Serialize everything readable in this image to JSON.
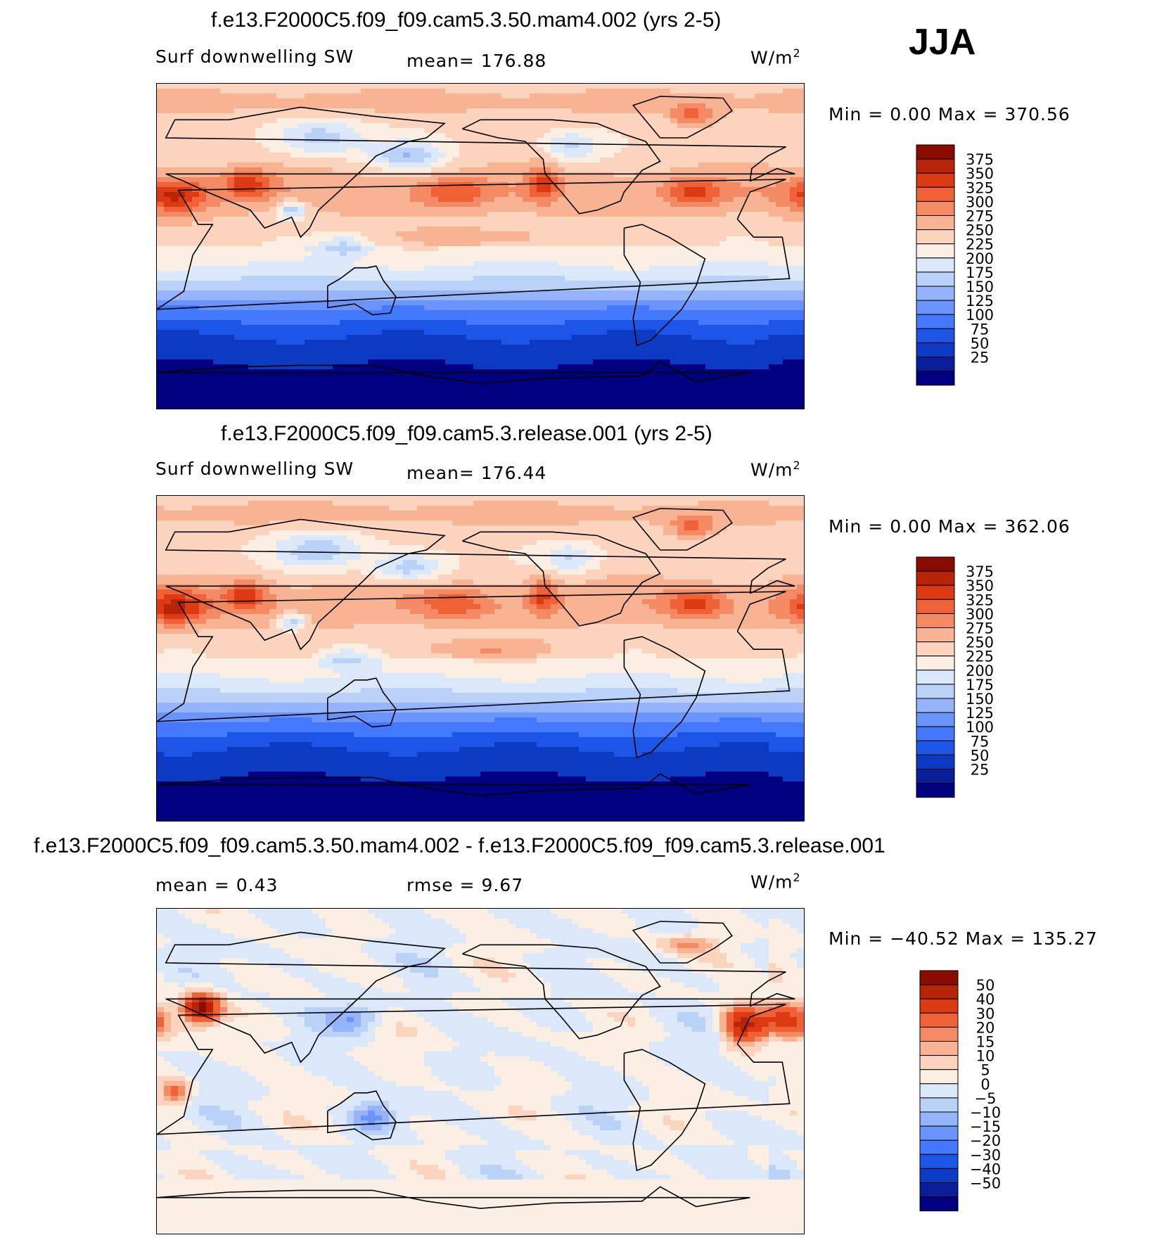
{
  "season": "JJA",
  "colors": {
    "abs_scale": [
      "#000080",
      "#0a1e9a",
      "#0d3ac2",
      "#1d55e6",
      "#4478ff",
      "#6a95ff",
      "#95b4fb",
      "#bad2f7",
      "#dae8fa",
      "#fbefe3",
      "#fcd3bc",
      "#f8b392",
      "#f48a63",
      "#ef6238",
      "#db3a12",
      "#b82407",
      "#8a0c00"
    ],
    "diff_scale": [
      "#000080",
      "#0a1e9a",
      "#0d3ac2",
      "#1d55e6",
      "#4478ff",
      "#6a95ff",
      "#95b4fb",
      "#bad2f7",
      "#dae8fa",
      "#fbefe3",
      "#fcd3bc",
      "#f8b392",
      "#f48a63",
      "#ef6238",
      "#db3a12",
      "#b82407",
      "#8a0c00"
    ]
  },
  "panels": [
    {
      "title": "f.e13.F2000C5.f09_f09.cam5.3.50.mam4.002 (yrs 2-5)",
      "left_label": "Surf downwelling SW",
      "center_label": "mean=  176.88",
      "units_base": "W/m",
      "units_exp": "2",
      "minmax": "Min =    0.00 Max = 370.56",
      "field_max": 370.56
    },
    {
      "title": "f.e13.F2000C5.f09_f09.cam5.3.release.001 (yrs 2-5)",
      "left_label": "Surf downwelling SW",
      "center_label": "mean=  176.44",
      "units_base": "W/m",
      "units_exp": "2",
      "minmax": "Min =    0.00 Max = 362.06",
      "field_max": 362.06
    },
    {
      "title": "f.e13.F2000C5.f09_f09.cam5.3.50.mam4.002 - f.e13.F2000C5.f09_f09.cam5.3.release.001",
      "left_label": "mean =    0.43",
      "center_label": "rmse =    9.67",
      "units_base": "W/m",
      "units_exp": "2",
      "minmax": "Min = −40.52 Max = 135.27",
      "field_min": -40.52,
      "field_max": 135.27
    }
  ],
  "chart_data": [
    {
      "type": "heatmap",
      "title": "f.e13.F2000C5.f09_f09.cam5.3.50.mam4.002 (yrs 2-5)",
      "variable": "Surf downwelling SW",
      "units": "W/m2",
      "mean": 176.88,
      "min": 0.0,
      "max": 370.56,
      "colorbar_levels": [
        "375",
        "350",
        "325",
        "300",
        "275",
        "250",
        "225",
        "200",
        "175",
        "150",
        "125",
        "100",
        "75",
        "50",
        "25"
      ]
    },
    {
      "type": "heatmap",
      "title": "f.e13.F2000C5.f09_f09.cam5.3.release.001 (yrs 2-5)",
      "variable": "Surf downwelling SW",
      "units": "W/m2",
      "mean": 176.44,
      "min": 0.0,
      "max": 362.06,
      "colorbar_levels": [
        "375",
        "350",
        "325",
        "300",
        "275",
        "250",
        "225",
        "200",
        "175",
        "150",
        "125",
        "100",
        "75",
        "50",
        "25"
      ]
    },
    {
      "type": "heatmap",
      "title": "f.e13.F2000C5.f09_f09.cam5.3.50.mam4.002 - f.e13.F2000C5.f09_f09.cam5.3.release.001",
      "units": "W/m2",
      "mean": 0.43,
      "rmse": 9.67,
      "min": -40.52,
      "max": 135.27,
      "colorbar_levels": [
        "50",
        "40",
        "30",
        "20",
        "15",
        "10",
        "5",
        "0",
        "−5",
        "−10",
        "−15",
        "−20",
        "−30",
        "−40",
        "−50"
      ]
    }
  ]
}
